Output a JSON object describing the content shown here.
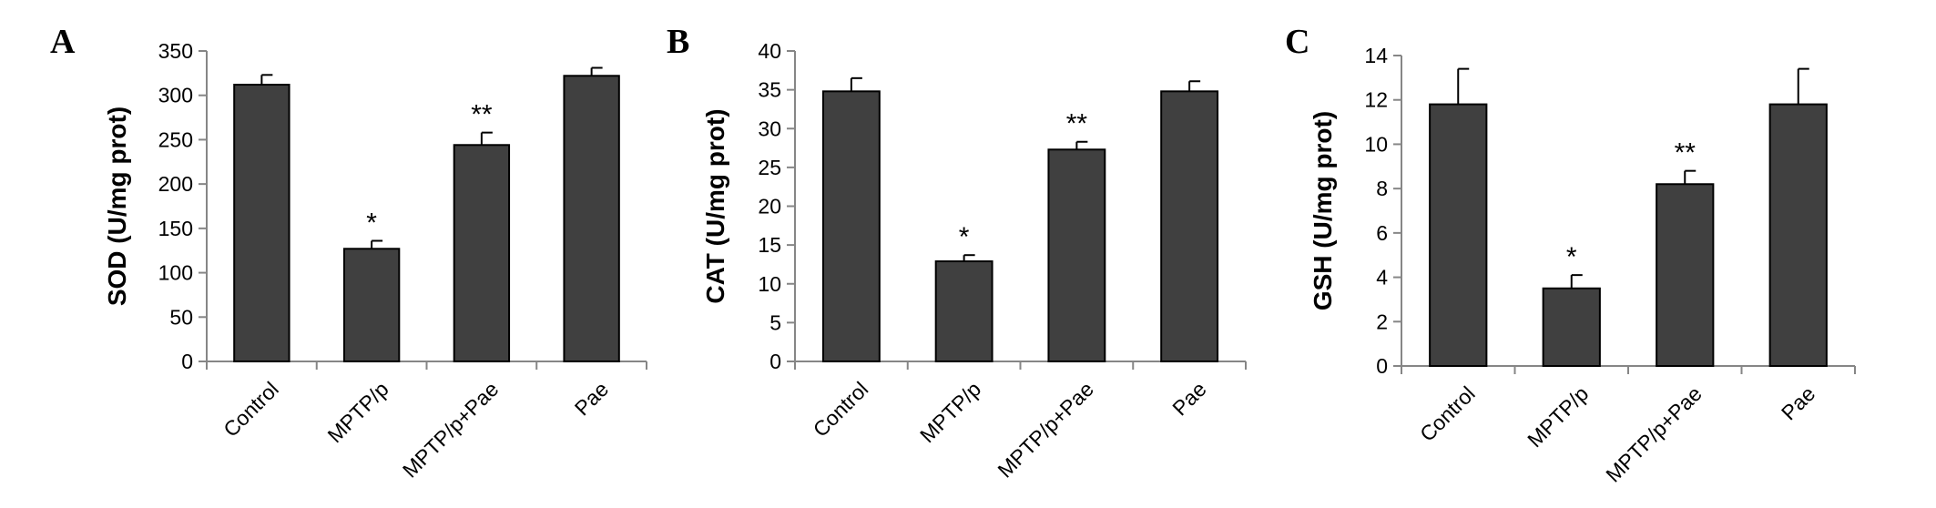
{
  "chart_data": [
    {
      "panel": "A",
      "type": "bar",
      "ylabel": "SOD (U/mg prot)",
      "ylim": [
        0,
        350
      ],
      "yticks": [
        0,
        50,
        100,
        150,
        200,
        250,
        300,
        350
      ],
      "categories": [
        "Control",
        "MPTP/p",
        "MPTP/p+Pae",
        "Pae"
      ],
      "values": [
        312,
        127,
        244,
        322
      ],
      "errors": [
        11,
        9,
        14,
        9
      ],
      "significance": [
        "",
        "*",
        "**",
        ""
      ],
      "bar_color": "#404040"
    },
    {
      "panel": "B",
      "type": "bar",
      "ylabel": "CAT (U/mg prot)",
      "ylim": [
        0,
        40
      ],
      "yticks": [
        0,
        5,
        10,
        15,
        20,
        25,
        30,
        35,
        40
      ],
      "categories": [
        "Control",
        "MPTP/p",
        "MPTP/p+Pae",
        "Pae"
      ],
      "values": [
        34.8,
        12.9,
        27.3,
        34.8
      ],
      "errors": [
        1.7,
        0.8,
        1.0,
        1.3
      ],
      "significance": [
        "",
        "*",
        "**",
        ""
      ],
      "bar_color": "#404040"
    },
    {
      "panel": "C",
      "type": "bar",
      "ylabel": "GSH (U/mg prot)",
      "ylim": [
        0,
        14
      ],
      "yticks": [
        0,
        2,
        4,
        6,
        8,
        10,
        12,
        14
      ],
      "categories": [
        "Control",
        "MPTP/p",
        "MPTP/p+Pae",
        "Pae"
      ],
      "values": [
        11.8,
        3.5,
        8.2,
        11.8
      ],
      "errors": [
        1.6,
        0.6,
        0.6,
        1.6
      ],
      "significance": [
        "",
        "*",
        "**",
        ""
      ],
      "bar_color": "#404040"
    }
  ]
}
